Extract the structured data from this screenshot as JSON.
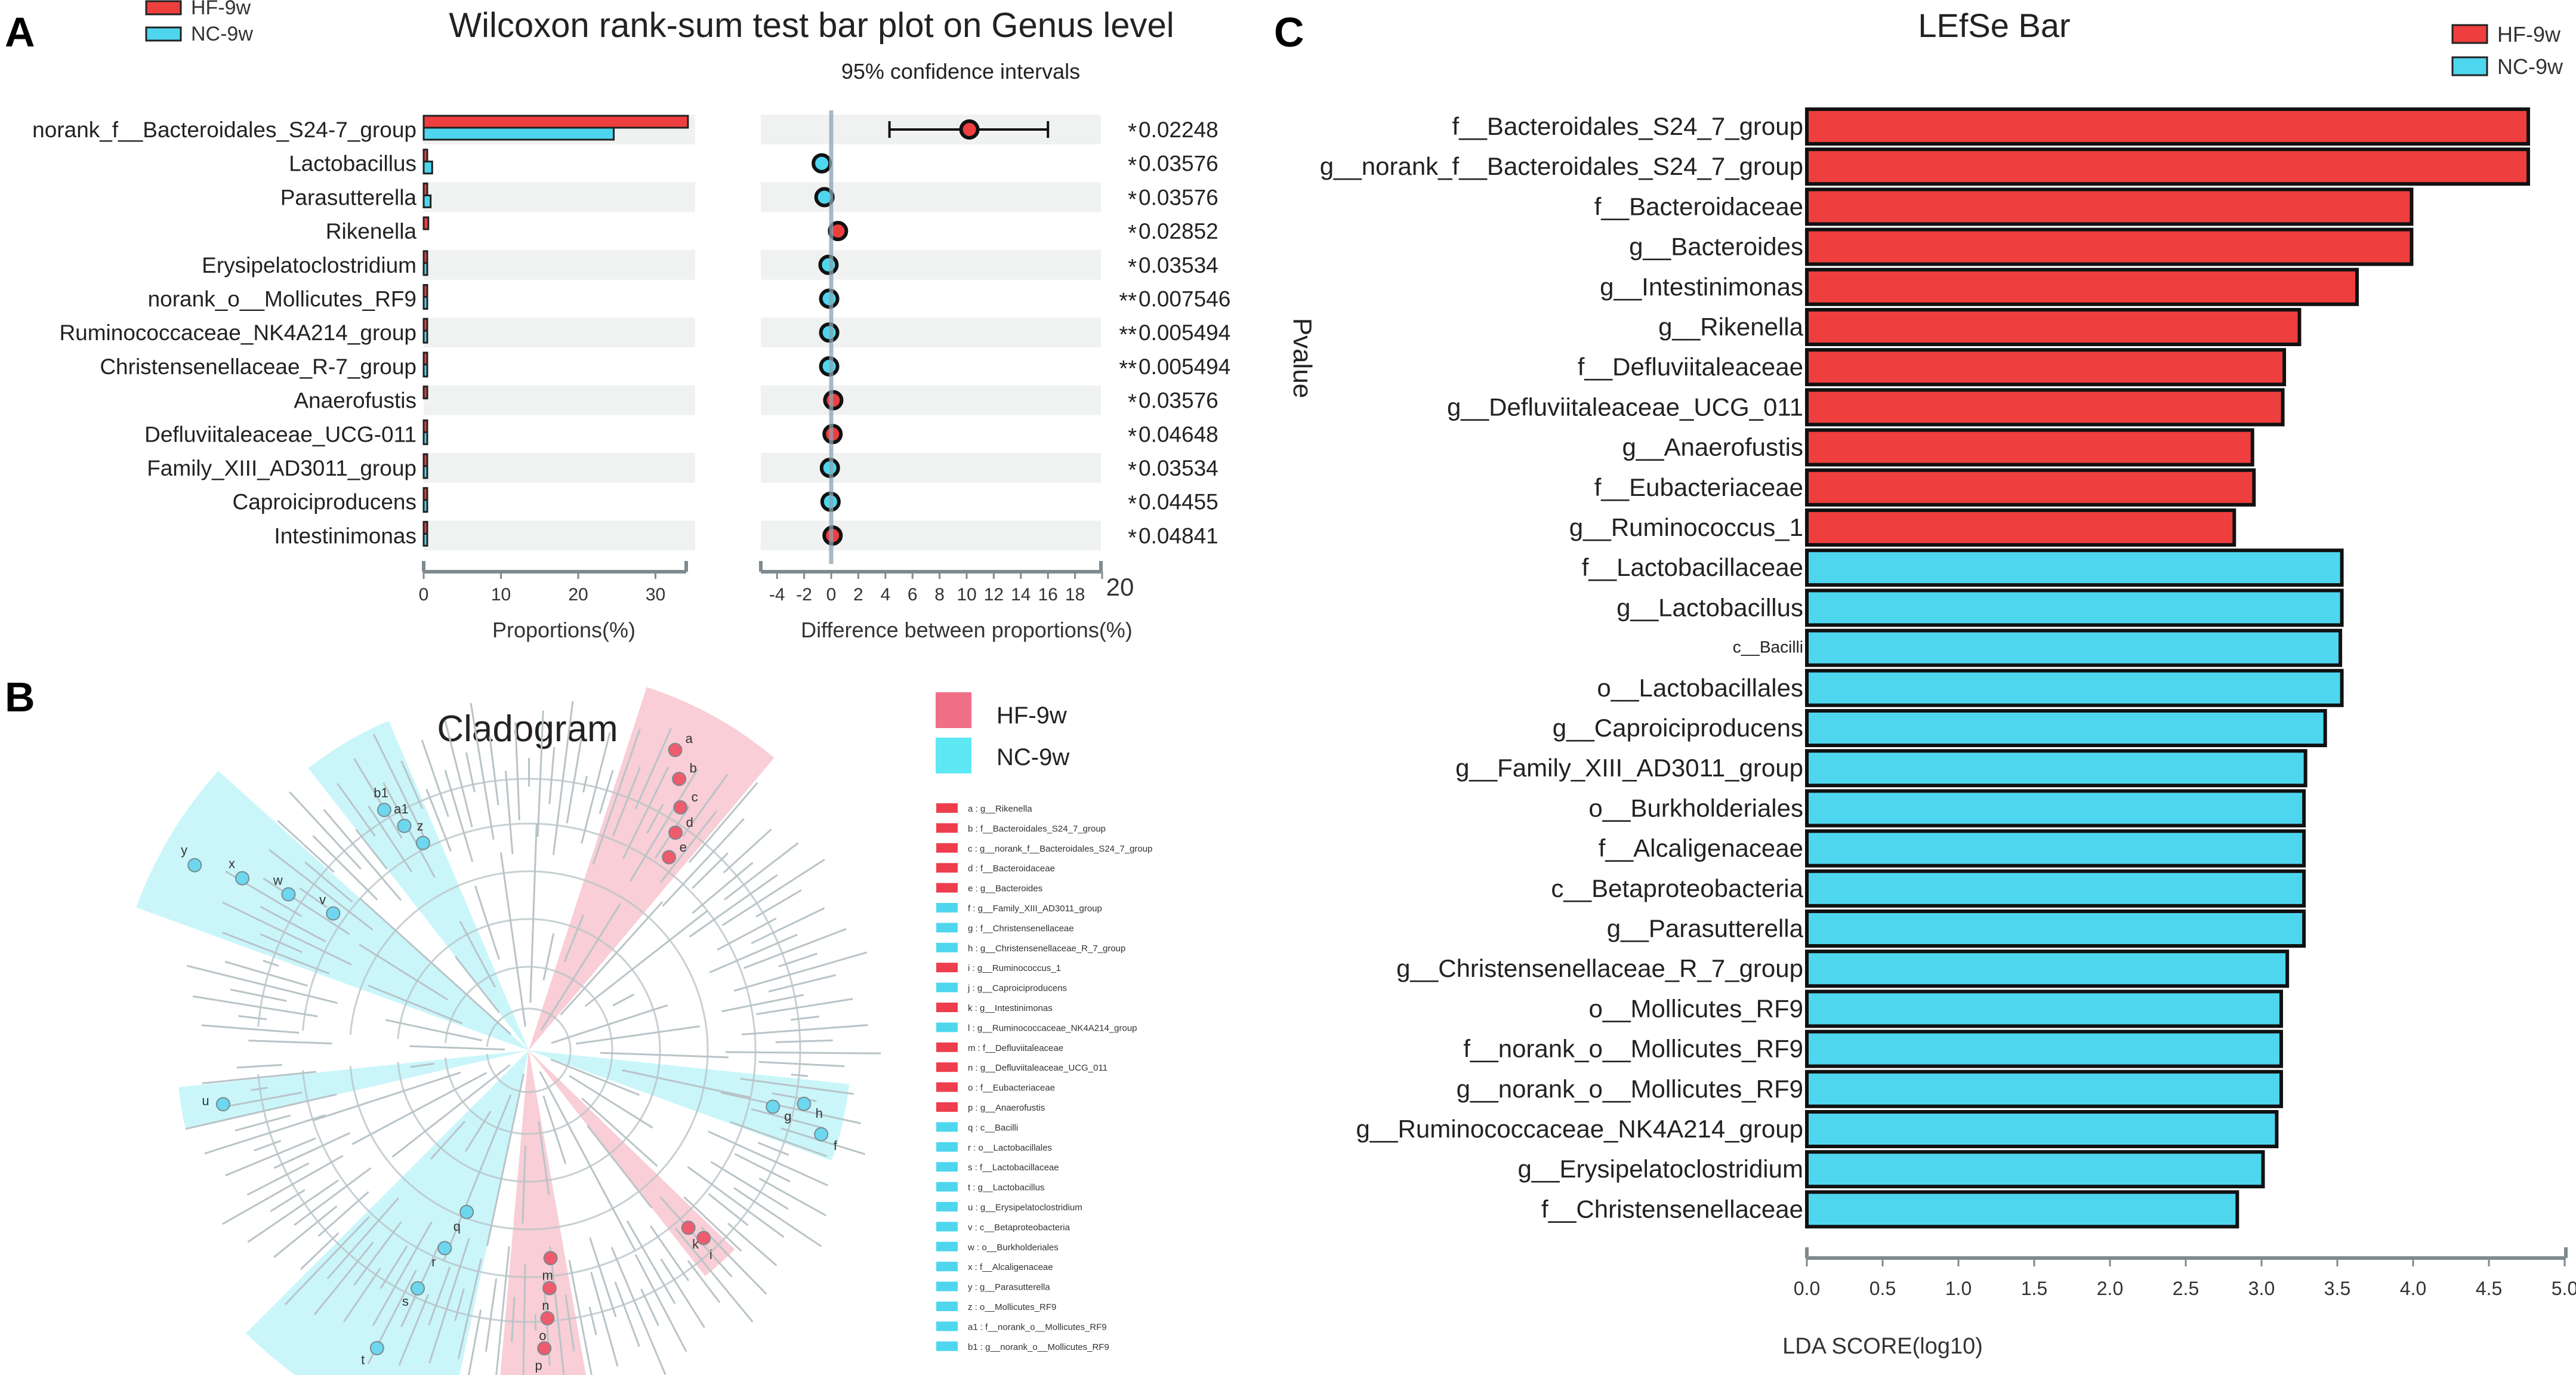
{
  "colors": {
    "hf": "#ee3e3e",
    "nc": "#4fd6ef",
    "row_band": "#f0f2f2",
    "axis": "#7f8a8e",
    "cladogram_line": "#b9c4c8"
  },
  "panel_labels": {
    "a": "A",
    "b": "B",
    "c": "C"
  },
  "wilcoxon": {
    "title": "Wilcoxon rank-sum test bar plot on Genus level",
    "ci_label": "95% confidence intervals",
    "legend": [
      "HF-9w",
      "NC-9w"
    ],
    "proportions_xlabel": "Proportions(%)",
    "difference_xlabel": "Difference between proportions(%)",
    "proportions_ticks": [
      "0",
      "10",
      "20",
      "30"
    ],
    "difference_ticks": [
      "-4",
      "-2",
      "0",
      "2",
      "4",
      "6",
      "8",
      "10",
      "12",
      "14",
      "16",
      "18",
      "20"
    ],
    "rows": [
      {
        "genus": "norank_f__Bacteroidales_S24-7_group",
        "hf": 34.2,
        "nc": 24.6,
        "diff": 10.2,
        "ci_low": 4.3,
        "ci_high": 16.0,
        "stars": "*",
        "p": "0.02248"
      },
      {
        "genus": "Lactobacillus",
        "hf": 0.4,
        "nc": 1.1,
        "diff": -0.7,
        "ci_low": -1.2,
        "ci_high": -0.2,
        "stars": "*",
        "p": "0.03576"
      },
      {
        "genus": "Parasutterella",
        "hf": 0.2,
        "nc": 0.9,
        "diff": -0.5,
        "ci_low": -0.9,
        "ci_high": -0.1,
        "stars": "*",
        "p": "0.03576"
      },
      {
        "genus": "Rikenella",
        "hf": 0.6,
        "nc": 0.0,
        "diff": 0.5,
        "ci_low": 0.1,
        "ci_high": 0.9,
        "stars": "*",
        "p": "0.02852"
      },
      {
        "genus": "Erysipelatoclostridium",
        "hf": 0.1,
        "nc": 0.3,
        "diff": -0.2,
        "ci_low": -0.4,
        "ci_high": 0.0,
        "stars": "*",
        "p": "0.03534"
      },
      {
        "genus": "norank_o__Mollicutes_RF9",
        "hf": 0.0,
        "nc": 0.2,
        "diff": -0.15,
        "ci_low": -0.3,
        "ci_high": 0.0,
        "stars": "**",
        "p": "0.007546"
      },
      {
        "genus": "Ruminococcaceae_NK4A214_group",
        "hf": 0.1,
        "nc": 0.3,
        "diff": -0.15,
        "ci_low": -0.3,
        "ci_high": 0.0,
        "stars": "**",
        "p": "0.005494"
      },
      {
        "genus": "Christensenellaceae_R-7_group",
        "hf": 0.1,
        "nc": 0.3,
        "diff": -0.15,
        "ci_low": -0.3,
        "ci_high": 0.0,
        "stars": "**",
        "p": "0.005494"
      },
      {
        "genus": "Anaerofustis",
        "hf": 0.2,
        "nc": 0.0,
        "diff": 0.15,
        "ci_low": 0.0,
        "ci_high": 0.3,
        "stars": "*",
        "p": "0.03576"
      },
      {
        "genus": "Defluviitaleaceae_UCG-011",
        "hf": 0.2,
        "nc": 0.1,
        "diff": 0.1,
        "ci_low": 0.0,
        "ci_high": 0.2,
        "stars": "*",
        "p": "0.04648"
      },
      {
        "genus": "Family_XIII_AD3011_group",
        "hf": 0.1,
        "nc": 0.2,
        "diff": -0.1,
        "ci_low": -0.2,
        "ci_high": 0.0,
        "stars": "*",
        "p": "0.03534"
      },
      {
        "genus": "Caproiciproducens",
        "hf": 0.0,
        "nc": 0.1,
        "diff": -0.05,
        "ci_low": -0.1,
        "ci_high": 0.0,
        "stars": "*",
        "p": "0.04455"
      },
      {
        "genus": "Intestinimonas",
        "hf": 0.2,
        "nc": 0.1,
        "diff": 0.1,
        "ci_low": 0.0,
        "ci_high": 0.2,
        "stars": "*",
        "p": "0.04841"
      }
    ]
  },
  "cladogram": {
    "title": "Cladogram",
    "legend": [
      "HF-9w",
      "NC-9w"
    ],
    "key": [
      {
        "text": "a : g__Rikenella",
        "group": "HF"
      },
      {
        "text": "b : f__Bacteroidales_S24_7_group",
        "group": "HF"
      },
      {
        "text": "c : g__norank_f__Bacteroidales_S24_7_group",
        "group": "HF"
      },
      {
        "text": "d : f__Bacteroidaceae",
        "group": "HF"
      },
      {
        "text": "e : g__Bacteroides",
        "group": "HF"
      },
      {
        "text": "f : g__Family_XIII_AD3011_group",
        "group": "NC"
      },
      {
        "text": "g : f__Christensenellaceae",
        "group": "NC"
      },
      {
        "text": "h : g__Christensenellaceae_R_7_group",
        "group": "NC"
      },
      {
        "text": "i : g__Ruminococcus_1",
        "group": "HF"
      },
      {
        "text": "j : g__Caproiciproducens",
        "group": "NC"
      },
      {
        "text": "k : g__Intestinimonas",
        "group": "HF"
      },
      {
        "text": "l : g__Ruminococcaceae_NK4A214_group",
        "group": "NC"
      },
      {
        "text": "m : f__Defluviitaleaceae",
        "group": "HF"
      },
      {
        "text": "n : g__Defluviitaleaceae_UCG_011",
        "group": "HF"
      },
      {
        "text": "o : f__Eubacteriaceae",
        "group": "HF"
      },
      {
        "text": "p : g__Anaerofustis",
        "group": "HF"
      },
      {
        "text": "q : c__Bacilli",
        "group": "NC"
      },
      {
        "text": "r : o__Lactobacillales",
        "group": "NC"
      },
      {
        "text": "s : f__Lactobacillaceae",
        "group": "NC"
      },
      {
        "text": "t : g__Lactobacillus",
        "group": "NC"
      },
      {
        "text": "u : g__Erysipelatoclostridium",
        "group": "NC"
      },
      {
        "text": "v : c__Betaproteobacteria",
        "group": "NC"
      },
      {
        "text": "w : o__Burkholderiales",
        "group": "NC"
      },
      {
        "text": "x : f__Alcaligenaceae",
        "group": "NC"
      },
      {
        "text": "y : g__Parasutterella",
        "group": "NC"
      },
      {
        "text": "z : o__Mollicutes_RF9",
        "group": "NC"
      },
      {
        "text": "a1 : f__norank_o__Mollicutes_RF9",
        "group": "NC"
      },
      {
        "text": "b1 : g__norank_o__Mollicutes_RF9",
        "group": "NC"
      }
    ],
    "clades": [
      {
        "id": "hf-top",
        "group": "HF",
        "letters": [
          "a",
          "b",
          "c",
          "d",
          "e"
        ]
      },
      {
        "id": "nc-b1",
        "group": "NC",
        "letters": [
          "b1",
          "a1",
          "z"
        ]
      },
      {
        "id": "nc-y",
        "group": "NC",
        "letters": [
          "y",
          "x",
          "w",
          "v"
        ]
      },
      {
        "id": "nc-u",
        "group": "NC",
        "letters": [
          "u"
        ]
      },
      {
        "id": "nc-t",
        "group": "NC",
        "letters": [
          "t",
          "s",
          "r",
          "q"
        ]
      },
      {
        "id": "hf-p",
        "group": "HF",
        "letters": [
          "p",
          "o",
          "n",
          "m"
        ]
      },
      {
        "id": "hf-ik",
        "group": "HF",
        "letters": [
          "i",
          "k"
        ]
      },
      {
        "id": "nc-ghf",
        "group": "NC",
        "letters": [
          "g",
          "h",
          "f"
        ]
      }
    ]
  },
  "lefse": {
    "title": "LEfSe Bar",
    "ylabel": "Pvalue",
    "xlabel": "LDA SCORE(log10)",
    "legend": [
      "HF-9w",
      "NC-9w"
    ],
    "x_ticks": [
      "0.0",
      "0.5",
      "1.0",
      "1.5",
      "2.0",
      "2.5",
      "3.0",
      "3.5",
      "4.0",
      "4.5",
      "5.0"
    ]
  },
  "chart_data": [
    {
      "type": "bar",
      "title": "Wilcoxon rank-sum test bar plot on Genus level",
      "orientation": "horizontal",
      "xlabel": "Proportions(%)",
      "xlim": [
        0,
        35
      ],
      "categories": [
        "norank_f__Bacteroidales_S24-7_group",
        "Lactobacillus",
        "Parasutterella",
        "Rikenella",
        "Erysipelatoclostridium",
        "norank_o__Mollicutes_RF9",
        "Ruminococcaceae_NK4A214_group",
        "Christensenellaceae_R-7_group",
        "Anaerofustis",
        "Defluviitaleaceae_UCG-011",
        "Family_XIII_AD3011_group",
        "Caproiciproducens",
        "Intestinimonas"
      ],
      "series": [
        {
          "name": "HF-9w",
          "values": [
            34.2,
            0.4,
            0.2,
            0.6,
            0.1,
            0.0,
            0.1,
            0.1,
            0.2,
            0.2,
            0.1,
            0.0,
            0.2
          ]
        },
        {
          "name": "NC-9w",
          "values": [
            24.6,
            1.1,
            0.9,
            0.0,
            0.3,
            0.2,
            0.3,
            0.3,
            0.0,
            0.1,
            0.2,
            0.1,
            0.1
          ]
        }
      ]
    },
    {
      "type": "scatter",
      "title": "95% confidence intervals",
      "xlabel": "Difference between proportions(%)",
      "xlim": [
        -5,
        20
      ],
      "categories": [
        "norank_f__Bacteroidales_S24-7_group",
        "Lactobacillus",
        "Parasutterella",
        "Rikenella",
        "Erysipelatoclostridium",
        "norank_o__Mollicutes_RF9",
        "Ruminococcaceae_NK4A214_group",
        "Christensenellaceae_R-7_group",
        "Anaerofustis",
        "Defluviitaleaceae_UCG-011",
        "Family_XIII_AD3011_group",
        "Caproiciproducens",
        "Intestinimonas"
      ],
      "values": [
        10.2,
        -0.7,
        -0.5,
        0.5,
        -0.2,
        -0.15,
        -0.15,
        -0.15,
        0.15,
        0.1,
        -0.1,
        -0.05,
        0.1
      ],
      "ci_low": [
        4.3,
        -1.2,
        -0.9,
        0.1,
        -0.4,
        -0.3,
        -0.3,
        -0.3,
        0.0,
        0.0,
        -0.2,
        -0.1,
        0.0
      ],
      "ci_high": [
        16.0,
        -0.2,
        -0.1,
        0.9,
        0.0,
        0.0,
        0.0,
        0.0,
        0.3,
        0.2,
        0.0,
        0.0,
        0.2
      ],
      "p_values": [
        "0.02248",
        "0.03576",
        "0.03576",
        "0.02852",
        "0.03534",
        "0.007546",
        "0.005494",
        "0.005494",
        "0.03576",
        "0.04648",
        "0.03534",
        "0.04455",
        "0.04841"
      ]
    },
    {
      "type": "bar",
      "title": "LEfSe Bar",
      "orientation": "horizontal",
      "xlabel": "LDA SCORE(log10)",
      "ylabel": "Pvalue",
      "xlim": [
        0,
        5.0
      ],
      "categories": [
        "f__Bacteroidales_S24_7_group",
        "g__norank_f__Bacteroidales_S24_7_group",
        "f__Bacteroidaceae",
        "g__Bacteroides",
        "g__Intestinimonas",
        "g__Rikenella",
        "f__Defluviitaleaceae",
        "g__Defluviitaleaceae_UCG_011",
        "g__Anaerofustis",
        "f__Eubacteriaceae",
        "g__Ruminococcus_1",
        "f__Lactobacillaceae",
        "g__Lactobacillus",
        "c__Bacilli",
        "o__Lactobacillales",
        "g__Caproiciproducens",
        "g__Family_XIII_AD3011_group",
        "o__Burkholderiales",
        "f__Alcaligenaceae",
        "c__Betaproteobacteria",
        "g__Parasutterella",
        "g__Christensenellaceae_R_7_group",
        "o__Mollicutes_RF9",
        "f__norank_o__Mollicutes_RF9",
        "g__norank_o__Mollicutes_RF9",
        "g__Ruminococcaceae_NK4A214_group",
        "g__Erysipelatoclostridium",
        "f__Christensenellaceae"
      ],
      "values": [
        4.76,
        4.76,
        3.99,
        3.99,
        3.63,
        3.25,
        3.15,
        3.14,
        2.94,
        2.95,
        2.82,
        3.53,
        3.53,
        3.52,
        3.53,
        3.42,
        3.29,
        3.28,
        3.28,
        3.28,
        3.28,
        3.17,
        3.13,
        3.13,
        3.13,
        3.1,
        3.01,
        2.84
      ],
      "groups": [
        "HF-9w",
        "HF-9w",
        "HF-9w",
        "HF-9w",
        "HF-9w",
        "HF-9w",
        "HF-9w",
        "HF-9w",
        "HF-9w",
        "HF-9w",
        "HF-9w",
        "NC-9w",
        "NC-9w",
        "NC-9w",
        "NC-9w",
        "NC-9w",
        "NC-9w",
        "NC-9w",
        "NC-9w",
        "NC-9w",
        "NC-9w",
        "NC-9w",
        "NC-9w",
        "NC-9w",
        "NC-9w",
        "NC-9w",
        "NC-9w",
        "NC-9w"
      ]
    }
  ]
}
